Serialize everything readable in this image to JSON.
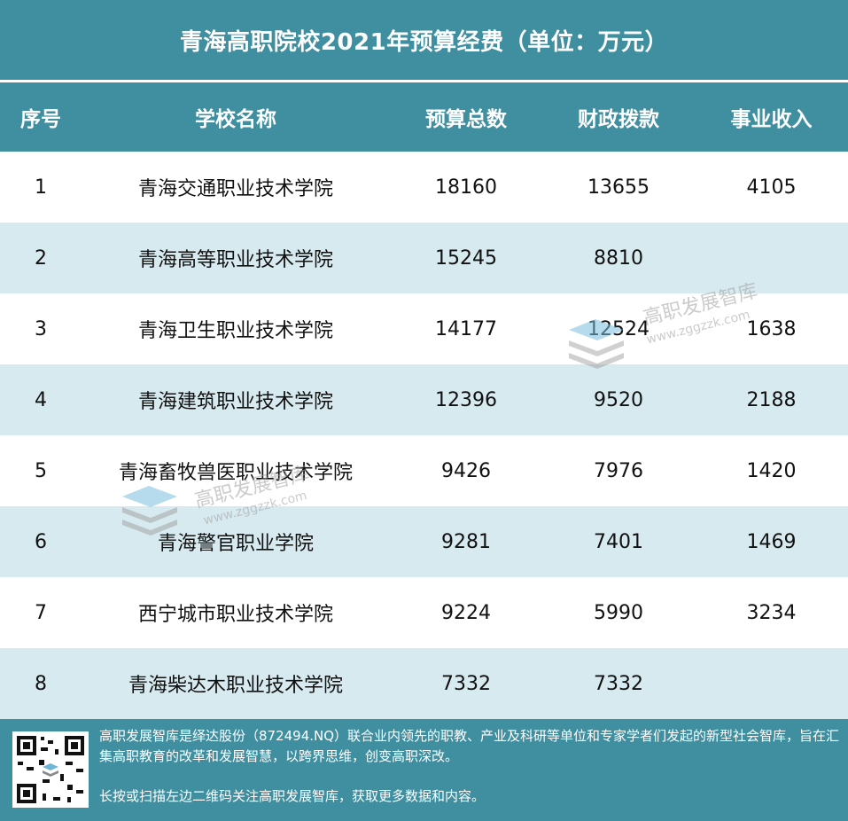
{
  "title": "青海高职院校2021年预算经费（单位：万元）",
  "headers": [
    "序号",
    "学校名称",
    "预算总数",
    "财政拨款",
    "事业收入"
  ],
  "rows": [
    [
      "1",
      "青海交通职业技术学院",
      "18160",
      "13655",
      "4105"
    ],
    [
      "2",
      "青海高等职业技术学院",
      "15245",
      "8810",
      ""
    ],
    [
      "3",
      "青海卫生职业技术学院",
      "14177",
      "12524",
      "1638"
    ],
    [
      "4",
      "青海建筑职业技术学院",
      "12396",
      "9520",
      "2188"
    ],
    [
      "5",
      "青海畜牧兽医职业技术学院",
      "9426",
      "7976",
      "1420"
    ],
    [
      "6",
      "青海警官职业学院",
      "9281",
      "7401",
      "1469"
    ],
    [
      "7",
      "西宁城市职业技术学院",
      "9224",
      "5990",
      "3234"
    ],
    [
      "8",
      "青海柴达木职业技术学院",
      "7332",
      "7332",
      ""
    ]
  ],
  "footer": {
    "line1": "高职发展智库是绎达股份（872494.NQ）联合业内领先的职教、产业及科研等单位和专家学者们发起的新型社会智库，旨在汇集高职教育的改革和发展智慧，以跨界思维，创变高职深改。",
    "line2": "长按或扫描左边二维码关注高职发展智库，获取更多数据和内容。"
  },
  "watermark": {
    "brand": "高职发展智库",
    "url": "www.zggzzk.com"
  },
  "colors": {
    "header_bg": "#3f8fa1",
    "stripe_bg": "#d7eaef"
  },
  "icons": [
    "qr-code-icon",
    "book-stack-logo-icon"
  ]
}
